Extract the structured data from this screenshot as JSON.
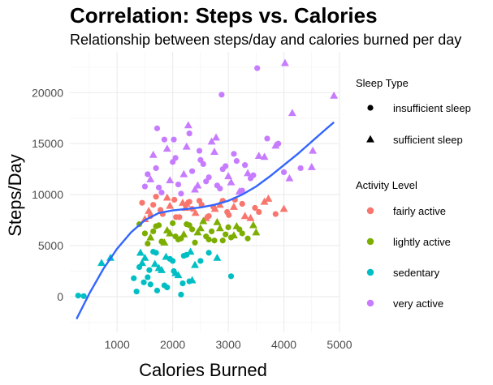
{
  "chart_data": {
    "type": "scatter",
    "title": "Correlation: Steps vs. Calories",
    "subtitle": "Relationship between steps/day and calories burned per day",
    "xlabel": "Calories Burned",
    "ylabel": "Steps/Day",
    "xlim": [
      150,
      5000
    ],
    "ylim": [
      -3500,
      24000
    ],
    "x_ticks": [
      1000,
      2000,
      3000,
      4000,
      5000
    ],
    "x_tick_labels": [
      "1000",
      "2000",
      "3000",
      "4000",
      "5000"
    ],
    "y_ticks": [
      0,
      5000,
      10000,
      15000,
      20000
    ],
    "y_tick_labels": [
      "0",
      "5000",
      "10000",
      "15000",
      "20000"
    ],
    "grid": true,
    "legend_placement": "right",
    "legends": [
      {
        "title": "Sleep Type",
        "entries": [
          {
            "label": "insufficient sleep",
            "shape": "circle"
          },
          {
            "label": "sufficient sleep",
            "shape": "triangle"
          }
        ]
      },
      {
        "title": "Activity Level",
        "entries": [
          {
            "label": "fairly active",
            "color": "#F8766D"
          },
          {
            "label": "lightly active",
            "color": "#7CAE00"
          },
          {
            "label": "sedentary",
            "color": "#00BFC4"
          },
          {
            "label": "very active",
            "color": "#C77CFF"
          }
        ]
      }
    ],
    "series": [
      {
        "name": "fairly active",
        "color": "#F8766D",
        "x": [
          1450,
          1570,
          1700,
          1820,
          1950,
          2030,
          2120,
          2230,
          2300,
          2410,
          2520,
          2650,
          2760,
          2900,
          3010,
          3100,
          3250,
          3400,
          3550,
          3720,
          1500,
          1650,
          1780,
          1900,
          2060,
          2180,
          2350,
          2480,
          2600,
          2730,
          2850,
          2980,
          3120,
          3300,
          3480,
          3650,
          3850,
          4000,
          1600,
          2250
        ],
        "y": [
          9200,
          8400,
          9800,
          8100,
          8900,
          9500,
          7800,
          8700,
          9300,
          8200,
          9000,
          7900,
          8600,
          9400,
          8000,
          8800,
          9100,
          7700,
          8300,
          9600,
          7600,
          9000,
          8500,
          9700,
          7800,
          9200,
          8600,
          9400,
          7700,
          8800,
          9000,
          8300,
          9500,
          7900,
          8700,
          9300,
          8100,
          8600,
          7900,
          9100
        ],
        "shapes": [
          "c",
          "t",
          "c",
          "c",
          "t",
          "c",
          "c",
          "t",
          "c",
          "t",
          "c",
          "c",
          "t",
          "c",
          "c",
          "t",
          "c",
          "t",
          "c",
          "t",
          "t",
          "c",
          "c",
          "t",
          "c",
          "t",
          "c",
          "c",
          "t",
          "c",
          "t",
          "c",
          "c",
          "t",
          "c",
          "t",
          "c",
          "t",
          "c",
          "t"
        ]
      },
      {
        "name": "lightly active",
        "color": "#7CAE00",
        "x": [
          1400,
          1500,
          1600,
          1700,
          1800,
          1900,
          2000,
          2100,
          2200,
          2300,
          2400,
          2500,
          2600,
          2700,
          2800,
          2900,
          3000,
          3100,
          3200,
          3350,
          3500,
          1550,
          1750,
          1950,
          2150,
          2350,
          2550,
          2750,
          2950,
          3150,
          1650,
          1850,
          2050,
          2250,
          2450,
          2650,
          2850,
          3050,
          3250,
          3450
        ],
        "y": [
          7100,
          6200,
          5800,
          6900,
          5400,
          6500,
          7200,
          5600,
          6100,
          7000,
          5300,
          6700,
          5900,
          6400,
          7300,
          5500,
          6800,
          6000,
          6600,
          5700,
          6300,
          5200,
          7000,
          6200,
          5700,
          6600,
          7400,
          5500,
          6100,
          6900,
          6400,
          5300,
          5900,
          7100,
          6300,
          5600,
          6700,
          5800,
          6200,
          7000
        ],
        "shapes": [
          "c",
          "c",
          "t",
          "c",
          "c",
          "t",
          "c",
          "c",
          "t",
          "c",
          "c",
          "t",
          "c",
          "c",
          "t",
          "c",
          "c",
          "t",
          "c",
          "c",
          "t",
          "c",
          "c",
          "t",
          "c",
          "c",
          "t",
          "c",
          "c",
          "t",
          "c",
          "t",
          "c",
          "c",
          "t",
          "c",
          "t",
          "c",
          "c",
          "t"
        ]
      },
      {
        "name": "sedentary",
        "color": "#00BFC4",
        "x": [
          300,
          400,
          720,
          880,
          1300,
          1400,
          1500,
          1600,
          1700,
          1800,
          1900,
          2000,
          2100,
          2200,
          2300,
          2400,
          1350,
          1450,
          1550,
          1650,
          1750,
          1850,
          1950,
          2050,
          2150,
          2250,
          2350,
          2500,
          2650,
          2800,
          3050,
          1420,
          1580,
          1720,
          1880,
          2020,
          2180,
          2320,
          1480,
          1680
        ],
        "y": [
          100,
          50,
          3300,
          3800,
          1800,
          2900,
          3800,
          1200,
          4300,
          2600,
          900,
          3500,
          2100,
          4000,
          1500,
          3100,
          500,
          3300,
          1900,
          4400,
          2800,
          1100,
          3700,
          2300,
          200,
          4100,
          1600,
          3500,
          4300,
          3800,
          2000,
          4300,
          2600,
          600,
          3900,
          2500,
          1300,
          4400,
          1400,
          3200
        ],
        "shapes": [
          "c",
          "c",
          "t",
          "t",
          "c",
          "c",
          "t",
          "c",
          "c",
          "t",
          "c",
          "c",
          "t",
          "c",
          "c",
          "t",
          "c",
          "t",
          "c",
          "c",
          "t",
          "c",
          "c",
          "t",
          "c",
          "c",
          "t",
          "c",
          "c",
          "t",
          "c",
          "t",
          "c",
          "c",
          "t",
          "c",
          "c",
          "t",
          "c",
          "t"
        ]
      },
      {
        "name": "very active",
        "color": "#C77CFF",
        "x": [
          1500,
          1600,
          1700,
          1800,
          1900,
          2000,
          2100,
          2200,
          2300,
          2400,
          2500,
          2600,
          2700,
          2800,
          2900,
          3000,
          3100,
          3200,
          3300,
          3400,
          3550,
          3700,
          3850,
          4000,
          4150,
          4300,
          4520,
          4900,
          3520,
          4020,
          2880,
          1550,
          1650,
          1750,
          1850,
          1950,
          2050,
          2150,
          2250,
          2350,
          2450,
          2550,
          2650,
          2750,
          2850,
          2950,
          3050,
          3150,
          3250,
          3350,
          3450,
          3650,
          3900,
          4100,
          4500,
          1720,
          2020,
          2280,
          2480,
          2780
        ],
        "y": [
          10800,
          11500,
          12600,
          10200,
          14500,
          13200,
          11000,
          12000,
          16000,
          10500,
          13400,
          11300,
          15200,
          10900,
          12500,
          11800,
          14000,
          10300,
          12900,
          11600,
          13800,
          15500,
          14800,
          12200,
          18000,
          12600,
          14300,
          19700,
          22400,
          22900,
          19800,
          12000,
          13900,
          10700,
          15400,
          11400,
          13600,
          10100,
          14700,
          12300,
          10900,
          13000,
          11700,
          14200,
          10600,
          12800,
          11200,
          13300,
          10400,
          12100,
          11900,
          13700,
          15000,
          11600,
          12700,
          16500,
          15400,
          16800,
          14300,
          15600
        ],
        "shapes": [
          "c",
          "t",
          "c",
          "c",
          "t",
          "c",
          "c",
          "t",
          "c",
          "t",
          "c",
          "c",
          "t",
          "c",
          "c",
          "t",
          "c",
          "t",
          "c",
          "c",
          "t",
          "c",
          "t",
          "c",
          "t",
          "c",
          "t",
          "t",
          "c",
          "t",
          "c",
          "c",
          "t",
          "c",
          "c",
          "t",
          "c",
          "c",
          "t",
          "c",
          "t",
          "c",
          "c",
          "t",
          "c",
          "c",
          "t",
          "c",
          "c",
          "t",
          "c",
          "t",
          "c",
          "t",
          "t",
          "c",
          "c",
          "t",
          "c",
          "t"
        ]
      }
    ],
    "trend_line": {
      "color": "#3366FF",
      "x": [
        270,
        500,
        750,
        1000,
        1250,
        1500,
        1750,
        2000,
        2250,
        2500,
        2750,
        3000,
        3250,
        3500,
        3750,
        4000,
        4250,
        4500,
        4750,
        4900
      ],
      "y": [
        -2200,
        300,
        2700,
        4700,
        6300,
        7500,
        8200,
        8450,
        8600,
        8750,
        9000,
        9400,
        10000,
        10800,
        11800,
        12900,
        14000,
        15200,
        16400,
        17100
      ]
    }
  }
}
